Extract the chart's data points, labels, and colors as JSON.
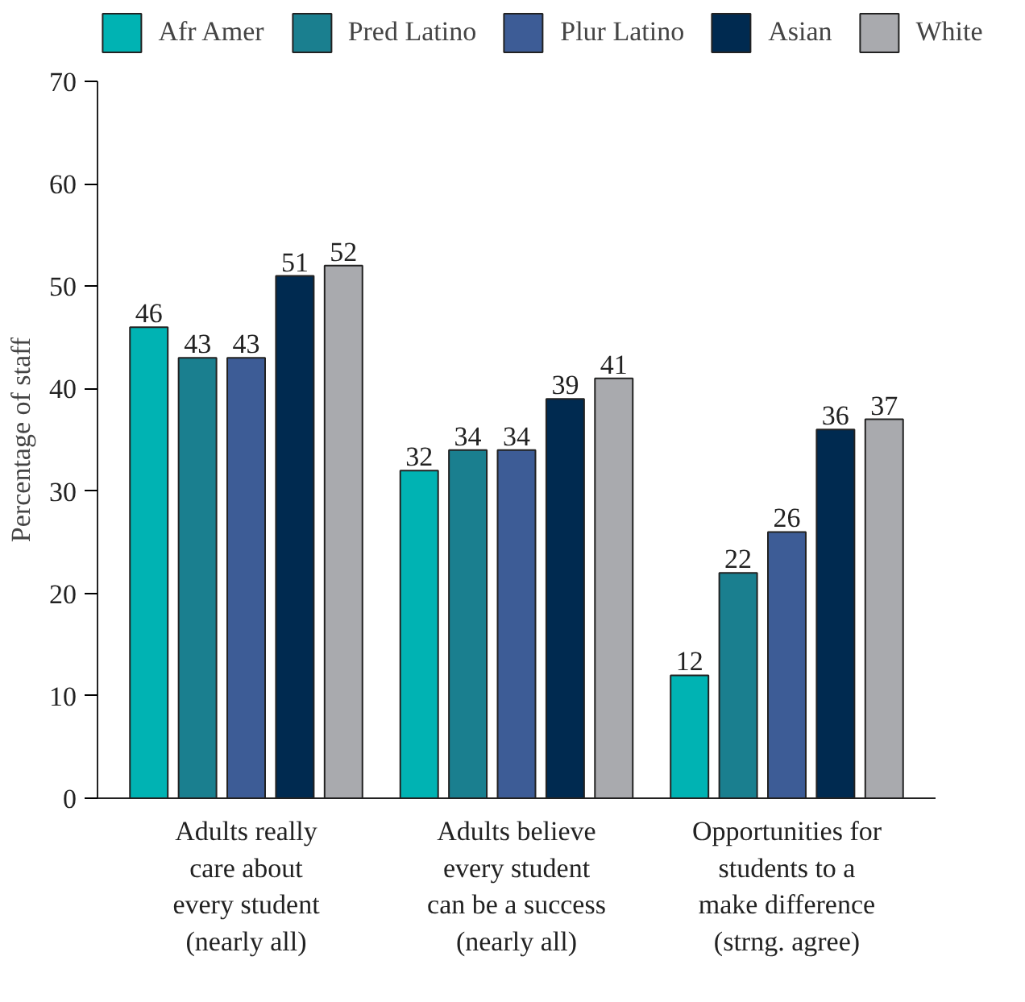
{
  "chart_data": {
    "type": "bar",
    "ylabel": "Percentage of staff",
    "categories": [
      "Adults really\ncare about\nevery student\n(nearly all)",
      "Adults believe\nevery student\ncan be a success\n(nearly all)",
      "Opportunities for\nstudents to a\nmake difference\n(strng. agree)"
    ],
    "series": [
      {
        "name": "Afr Amer",
        "color": "#00b3b3",
        "values": [
          46,
          32,
          12
        ]
      },
      {
        "name": "Pred Latino",
        "color": "#1a7f8f",
        "values": [
          43,
          34,
          22
        ]
      },
      {
        "name": "Plur Latino",
        "color": "#3d5c96",
        "values": [
          43,
          34,
          26
        ]
      },
      {
        "name": "Asian",
        "color": "#002a50",
        "values": [
          51,
          39,
          36
        ]
      },
      {
        "name": "White",
        "color": "#a9aaae",
        "values": [
          52,
          41,
          37
        ]
      }
    ],
    "ylim": [
      0,
      70
    ],
    "yticks": [
      0,
      10,
      20,
      30,
      40,
      50,
      60,
      70
    ],
    "grid": false,
    "legend": "top",
    "data_labels": true
  }
}
